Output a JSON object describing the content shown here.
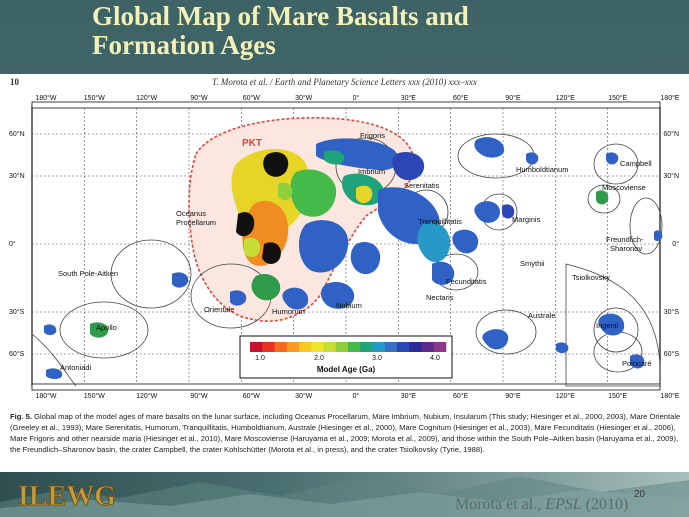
{
  "slide": {
    "title_line1": "Global Map of Mare Basalts and",
    "title_line2": "Formation Ages",
    "slide_number": "20",
    "citation_author": "Morota et al., ",
    "citation_journal": "EPSL",
    "citation_year": " (2010)",
    "logo_text": "ILEWG"
  },
  "paper": {
    "page_number": "10",
    "journal_header": "T. Morota et al. / Earth and Planetary Science Letters xxx (2010) xxx–xxx"
  },
  "map": {
    "lon_labels": [
      "180°W",
      "150°W",
      "120°W",
      "90°W",
      "60°W",
      "30°W",
      "0°",
      "30°E",
      "60°E",
      "90°E",
      "120°E",
      "150°E",
      "180°E"
    ],
    "lat_labels": [
      "60°N",
      "30°N",
      "0°",
      "30°S",
      "60°S"
    ],
    "region_labels": {
      "pkt": "PKT",
      "frigoris": "Frigoris",
      "imbrium": "Imbrium",
      "serenitatis": "Serenitatis",
      "oceanus1": "Oceanus",
      "oceanus2": "Procellarum",
      "tranquillitatis": "Tranquillitatis",
      "humboldtianum": "Humboldtianum",
      "campbell": "Campbell",
      "moscoviense": "Moscoviense",
      "marginis": "Marginis",
      "freundlich1": "Freundlich-",
      "freundlich2": "Sharonov",
      "smythii": "Smythii",
      "spa": "South Pole-Aitken",
      "fecunditatis": "Fecunditatis",
      "tsiolkovsky": "Tsiolkovsky",
      "nectaris": "Nectaris",
      "orientale": "Orientale",
      "nubium": "Nubium",
      "humorum": "Humorum",
      "apollo": "Apollo",
      "australe": "Australe",
      "ingenii": "Ingenii",
      "poincare": "Poincaré",
      "antoniadi": "Antoniadi"
    },
    "colorbar": {
      "ticks": [
        "1.0",
        "2.0",
        "3.0",
        "4.0"
      ],
      "label": "Model Age (Ga)",
      "colors": [
        "#c8102e",
        "#e8301e",
        "#f46a1e",
        "#f79a22",
        "#f6c71f",
        "#efe62a",
        "#c6de33",
        "#8fcf3c",
        "#45b94a",
        "#1fa37a",
        "#2799c6",
        "#3670c6",
        "#2c47b5",
        "#2a2a9a",
        "#5b2a8a",
        "#8b3a8a"
      ]
    },
    "colors": {
      "pkt_outline": "#e0463a",
      "pkt_fill": "#fbe6e0",
      "blue": "#2f62c4",
      "green": "#2e9a4a",
      "yellow": "#e6d426",
      "orange": "#ef8c22"
    }
  },
  "caption": {
    "fig": "Fig. 5.",
    "text": " Global map of the model ages of mare basalts on the lunar surface, including Oceanus Procellarum, Mare Imbrium, Nubium, Insularum (This study; Hiesinger et al., 2000, 2003), Mare Orientale (Greeley et al., 1993), Mare Serenitatis, Humorum, Tranquillitatis, Humboldtianum, Australe (Hiesinger et al., 2000), Mare Cognitum (Hiesinger et al., 2003), Mare Fecunditatis (Hiesinger et al., 2006), Mare Frigoris and other nearside maria (Hiesinger et al., 2010), Mare Moscoviense (Haruyama et al., 2009; Morota et al., 2009), and those within the South Pole–Aitken basin (Haruyama et al., 2009), the Freundlich–Sharonov basin, the crater Campbell, the crater Kohlschütter (Morota et al., in press), and the crater Tsiolkovsky (Tyrie, 1988)."
  }
}
